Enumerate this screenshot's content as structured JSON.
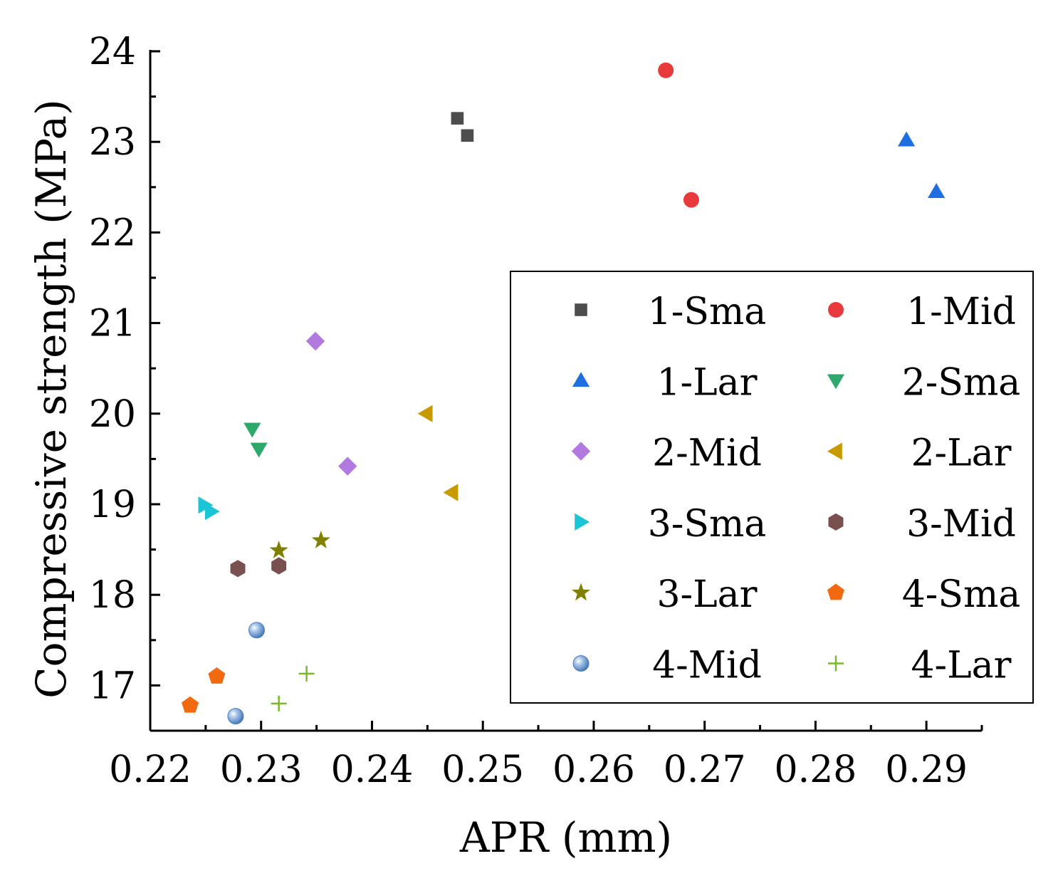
{
  "chart_data": {
    "type": "scatter",
    "xlabel": "APR (mm)",
    "ylabel": "Compressive strength (MPa)",
    "xlim": [
      0.22,
      0.295
    ],
    "ylim": [
      16.5,
      24
    ],
    "x_ticks": [
      "0.22",
      "0.23",
      "0.24",
      "0.25",
      "0.26",
      "0.27",
      "0.28",
      "0.29"
    ],
    "x_tick_values": [
      0.22,
      0.23,
      0.24,
      0.25,
      0.26,
      0.27,
      0.28,
      0.29
    ],
    "y_ticks": [
      "17",
      "18",
      "19",
      "20",
      "21",
      "22",
      "23",
      "24"
    ],
    "y_tick_values": [
      17,
      18,
      19,
      20,
      21,
      22,
      23,
      24
    ],
    "legend_position": "center-right",
    "series": [
      {
        "name": "1-Sma",
        "marker": "square",
        "color": "#4d4d4d",
        "points": [
          [
            0.2477,
            23.26
          ],
          [
            0.2486,
            23.07
          ]
        ]
      },
      {
        "name": "1-Mid",
        "marker": "circle",
        "color": "#e8393d",
        "points": [
          [
            0.2665,
            23.79
          ],
          [
            0.2688,
            22.36
          ]
        ]
      },
      {
        "name": "1-Lar",
        "marker": "triangle-up",
        "color": "#1f6fe0",
        "points": [
          [
            0.2882,
            23.02
          ],
          [
            0.2909,
            22.45
          ]
        ]
      },
      {
        "name": "2-Sma",
        "marker": "triangle-down",
        "color": "#2ea86b",
        "points": [
          [
            0.2292,
            19.83
          ],
          [
            0.2298,
            19.61
          ]
        ]
      },
      {
        "name": "2-Mid",
        "marker": "diamond",
        "color": "#b27ae0",
        "points": [
          [
            0.2349,
            20.8
          ],
          [
            0.2378,
            19.42
          ]
        ]
      },
      {
        "name": "2-Lar",
        "marker": "triangle-left",
        "color": "#c79a00",
        "points": [
          [
            0.2449,
            20.0
          ],
          [
            0.2472,
            19.13
          ]
        ]
      },
      {
        "name": "3-Sma",
        "marker": "triangle-right",
        "color": "#1ac6d6",
        "points": [
          [
            0.2249,
            18.99
          ],
          [
            0.2255,
            18.92
          ]
        ]
      },
      {
        "name": "3-Mid",
        "marker": "hexagon",
        "color": "#7a4f4f",
        "points": [
          [
            0.2279,
            18.29
          ],
          [
            0.2316,
            18.32
          ]
        ]
      },
      {
        "name": "3-Lar",
        "marker": "star",
        "color": "#808000",
        "points": [
          [
            0.2316,
            18.49
          ],
          [
            0.2354,
            18.6
          ]
        ]
      },
      {
        "name": "4-Sma",
        "marker": "pentagon",
        "color": "#f26a0f",
        "points": [
          [
            0.2236,
            16.78
          ],
          [
            0.226,
            17.1
          ]
        ]
      },
      {
        "name": "4-Mid",
        "marker": "sphere",
        "color": "#6a9ad0",
        "points": [
          [
            0.2296,
            17.61
          ],
          [
            0.2277,
            16.66
          ]
        ]
      },
      {
        "name": "4-Lar",
        "marker": "plus",
        "color": "#7ab82e",
        "points": [
          [
            0.2316,
            16.8
          ],
          [
            0.2341,
            17.13
          ]
        ]
      }
    ]
  }
}
